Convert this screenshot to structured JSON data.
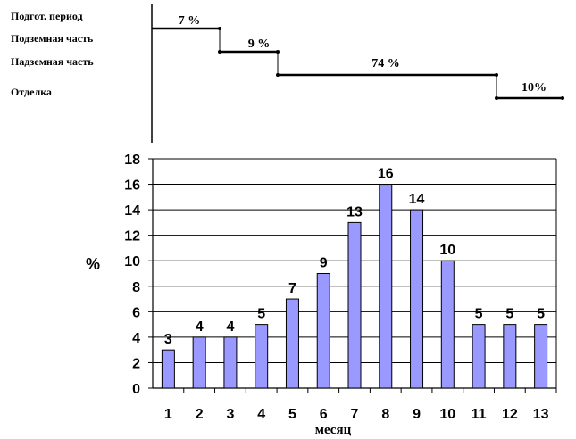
{
  "schedule": {
    "phases": [
      {
        "label": "Подгот. период",
        "percent_label": "7 %",
        "share": 7
      },
      {
        "label": "Подземная часть",
        "percent_label": "9 %",
        "share": 9
      },
      {
        "label": "Надземная часть",
        "percent_label": "74 %",
        "share": 74
      },
      {
        "label": "Отделка",
        "percent_label": "10%",
        "share": 10
      }
    ]
  },
  "chart_data": {
    "type": "bar",
    "categories": [
      "1",
      "2",
      "3",
      "4",
      "5",
      "6",
      "7",
      "8",
      "9",
      "10",
      "11",
      "12",
      "13"
    ],
    "values": [
      3,
      4,
      4,
      5,
      7,
      9,
      13,
      16,
      14,
      10,
      5,
      5,
      5
    ],
    "xlabel": "месяц",
    "ylabel": "%",
    "ylim": [
      0,
      18
    ],
    "yticks": [
      0,
      2,
      4,
      6,
      8,
      10,
      12,
      14,
      16,
      18
    ],
    "grid": true,
    "legend": "none",
    "bar_color": "#9999ff",
    "bar_stroke": "#000000"
  }
}
